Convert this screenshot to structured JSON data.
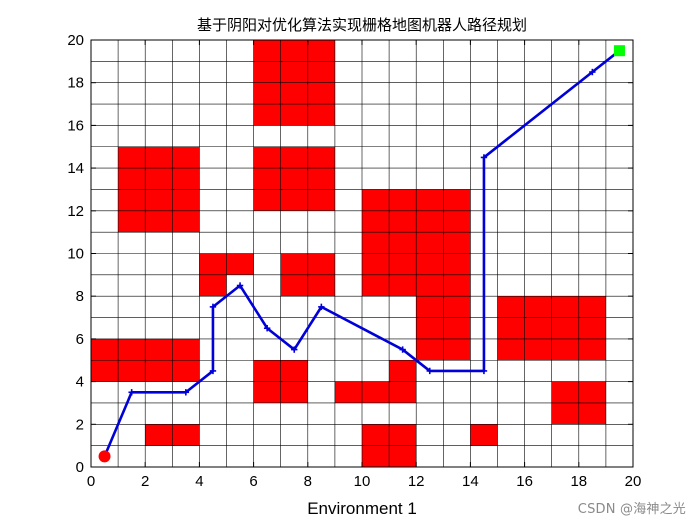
{
  "chart_data": {
    "type": "scatter",
    "title": "基于阴阳对优化算法实现栅格地图机器人路径规划",
    "xlabel": "Environment 1",
    "ylabel": "",
    "xlim": [
      0,
      20
    ],
    "ylim": [
      0,
      20
    ],
    "xticks": [
      0,
      2,
      4,
      6,
      8,
      10,
      12,
      14,
      16,
      18,
      20
    ],
    "yticks": [
      0,
      2,
      4,
      6,
      8,
      10,
      12,
      14,
      16,
      18,
      20
    ],
    "grid": true,
    "colors": {
      "obstacle": "#ff0000",
      "path": "#0000d8",
      "start": "#ff0000",
      "goal": "#00ff00",
      "grid": "#000000"
    },
    "obstacles": [
      [
        6,
        16,
        3,
        4
      ],
      [
        1,
        11,
        3,
        4
      ],
      [
        6,
        12,
        3,
        3
      ],
      [
        10,
        8,
        4,
        5
      ],
      [
        4,
        9,
        2,
        1
      ],
      [
        4,
        8,
        1,
        1
      ],
      [
        7,
        8,
        2,
        2
      ],
      [
        12,
        5,
        2,
        3
      ],
      [
        15,
        5,
        4,
        3
      ],
      [
        0,
        4,
        4,
        2
      ],
      [
        6,
        3,
        2,
        2
      ],
      [
        9,
        3,
        3,
        1
      ],
      [
        11,
        4,
        1,
        1
      ],
      [
        17,
        2,
        2,
        2
      ],
      [
        2,
        1,
        2,
        1
      ],
      [
        10,
        0,
        2,
        2
      ],
      [
        14,
        1,
        1,
        1
      ]
    ],
    "path": {
      "x": [
        0.5,
        1.5,
        3.5,
        4.5,
        4.5,
        5.5,
        6.5,
        7.5,
        8.5,
        11.5,
        12.5,
        14.5,
        14.5,
        18.5,
        19.5
      ],
      "y": [
        0.5,
        3.5,
        3.5,
        4.5,
        7.5,
        8.5,
        6.5,
        5.5,
        7.5,
        5.5,
        4.5,
        4.5,
        14.5,
        18.5,
        19.5
      ]
    },
    "start": [
      0.5,
      0.5
    ],
    "goal": [
      19.5,
      19.5
    ]
  },
  "watermark": "CSDN @海神之光"
}
